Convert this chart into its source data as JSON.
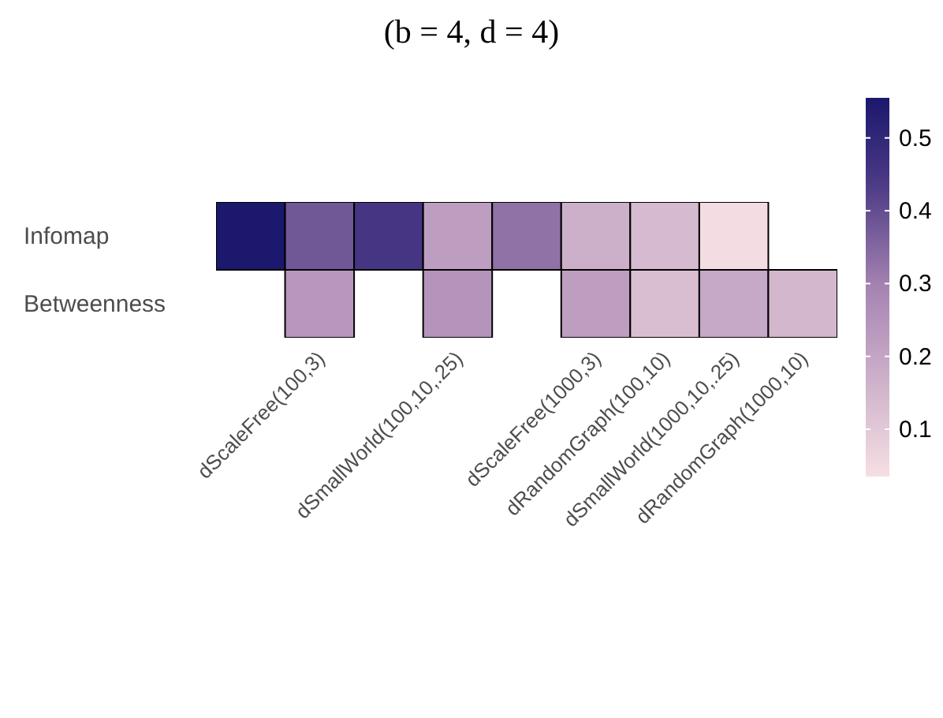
{
  "chart_data": {
    "type": "heatmap",
    "title": "(b = 4, d = 4)",
    "categories": [
      null,
      "dScaleFree(100,3)",
      null,
      "dSmallWorld(100,10,.25)",
      null,
      "dScaleFree(1000,3)",
      "dRandomGraph(100,10)",
      "dSmallWorld(1000,10,.25)",
      "dRandomGraph(1000,10)"
    ],
    "y_categories": [
      "Infomap",
      "Betweenness"
    ],
    "cells": [
      [
        0.555,
        0.38,
        0.45,
        0.22,
        0.33,
        0.17,
        0.14,
        0.04,
        null
      ],
      [
        null,
        0.24,
        null,
        0.25,
        null,
        0.22,
        0.13,
        0.19,
        0.15
      ]
    ],
    "clim": [
      0.035,
      0.555
    ],
    "cticks": [
      0.1,
      0.2,
      0.3,
      0.4,
      0.5
    ]
  }
}
